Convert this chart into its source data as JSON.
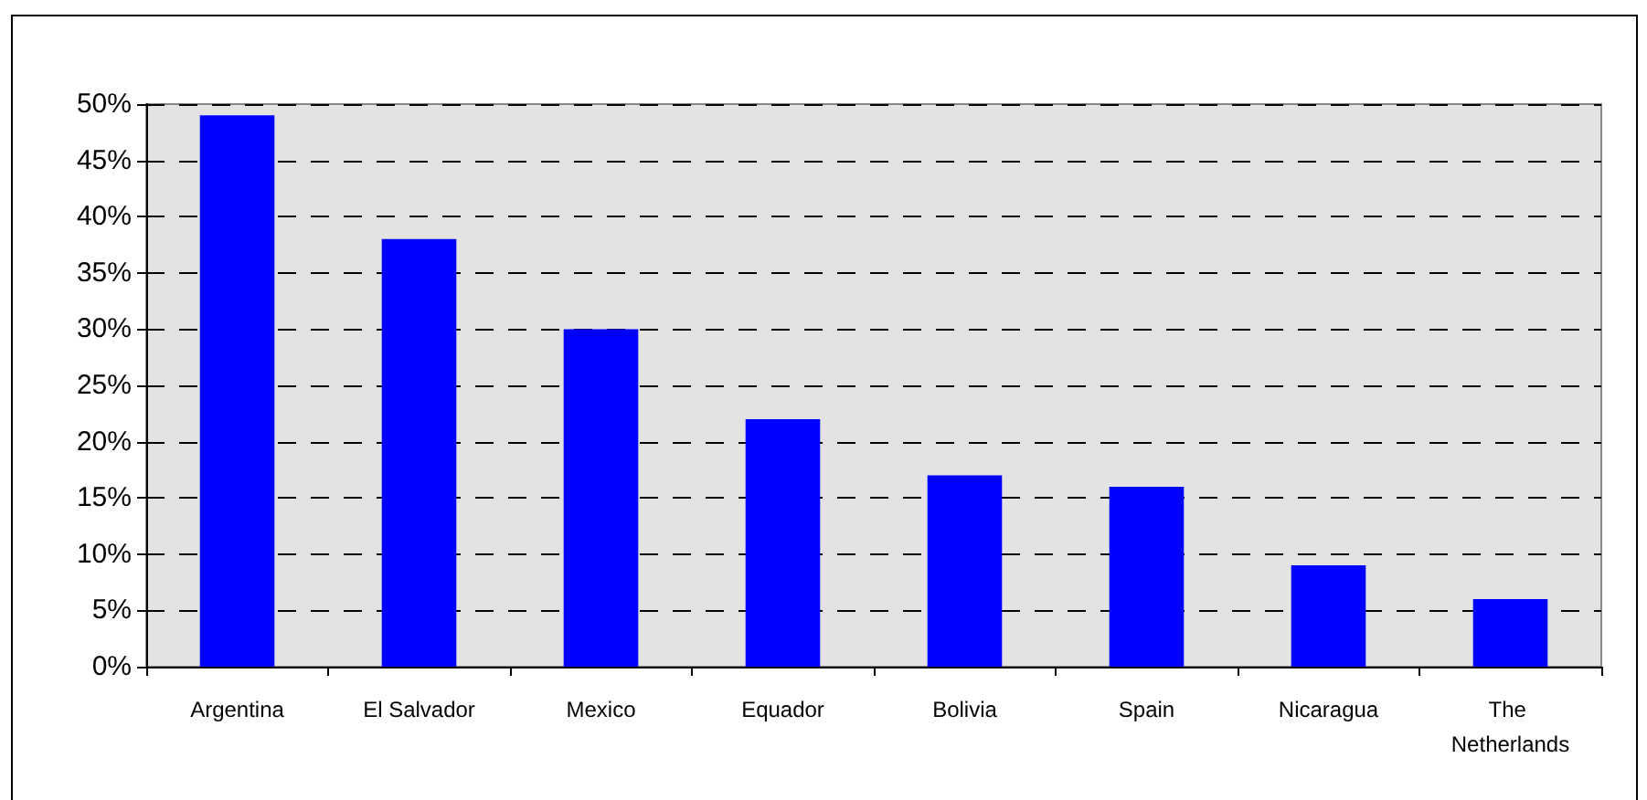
{
  "chart_data": {
    "type": "bar",
    "categories": [
      "Argentina",
      "El Salvador",
      "Mexico",
      "Equador",
      "Bolivia",
      "Spain",
      "Nicaragua",
      "The Netherlands"
    ],
    "values": [
      49,
      38,
      30,
      22,
      17,
      16,
      9,
      6
    ],
    "color": "#0000ff",
    "ylim": [
      0,
      50
    ],
    "yticks": [
      {
        "value": 0,
        "label": "0%"
      },
      {
        "value": 5,
        "label": "5%"
      },
      {
        "value": 10,
        "label": "10%"
      },
      {
        "value": 15,
        "label": "15%"
      },
      {
        "value": 20,
        "label": "20%"
      },
      {
        "value": 25,
        "label": "25%"
      },
      {
        "value": 30,
        "label": "30%"
      },
      {
        "value": 35,
        "label": "35%"
      },
      {
        "value": 40,
        "label": "40%"
      },
      {
        "value": 45,
        "label": "45%"
      },
      {
        "value": 50,
        "label": "50%"
      }
    ],
    "grid": "y"
  }
}
